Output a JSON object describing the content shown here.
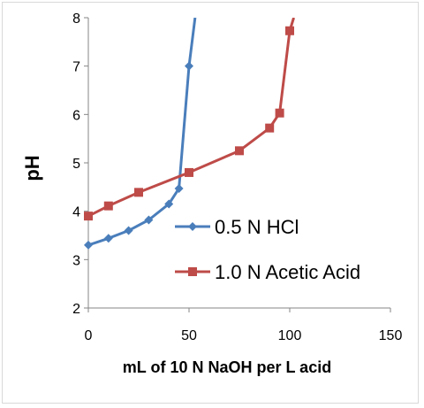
{
  "chart_data": {
    "type": "line",
    "xlabel": "mL of 10 N NaOH per L acid",
    "ylabel": "pH",
    "xlim": [
      0,
      150
    ],
    "ylim": [
      2,
      8
    ],
    "xticks": [
      0,
      50,
      100,
      150
    ],
    "yticks": [
      2,
      3,
      4,
      5,
      6,
      7,
      8
    ],
    "grid": false,
    "legend_position": "center-right",
    "series": [
      {
        "name": "0.5 N HCl",
        "color": "#4a7ebb",
        "marker": "diamond",
        "x": [
          0,
          10,
          20,
          30,
          40,
          45,
          50,
          53
        ],
        "y": [
          3.3,
          3.44,
          3.6,
          3.82,
          4.15,
          4.47,
          7.0,
          8.0
        ]
      },
      {
        "name": "1.0 N Acetic Acid",
        "color": "#be4b48",
        "marker": "square",
        "x": [
          0,
          10,
          25,
          50,
          75,
          90,
          95,
          100,
          102
        ],
        "y": [
          3.9,
          4.11,
          4.39,
          4.8,
          5.25,
          5.72,
          6.03,
          7.73,
          8.0
        ]
      }
    ]
  }
}
